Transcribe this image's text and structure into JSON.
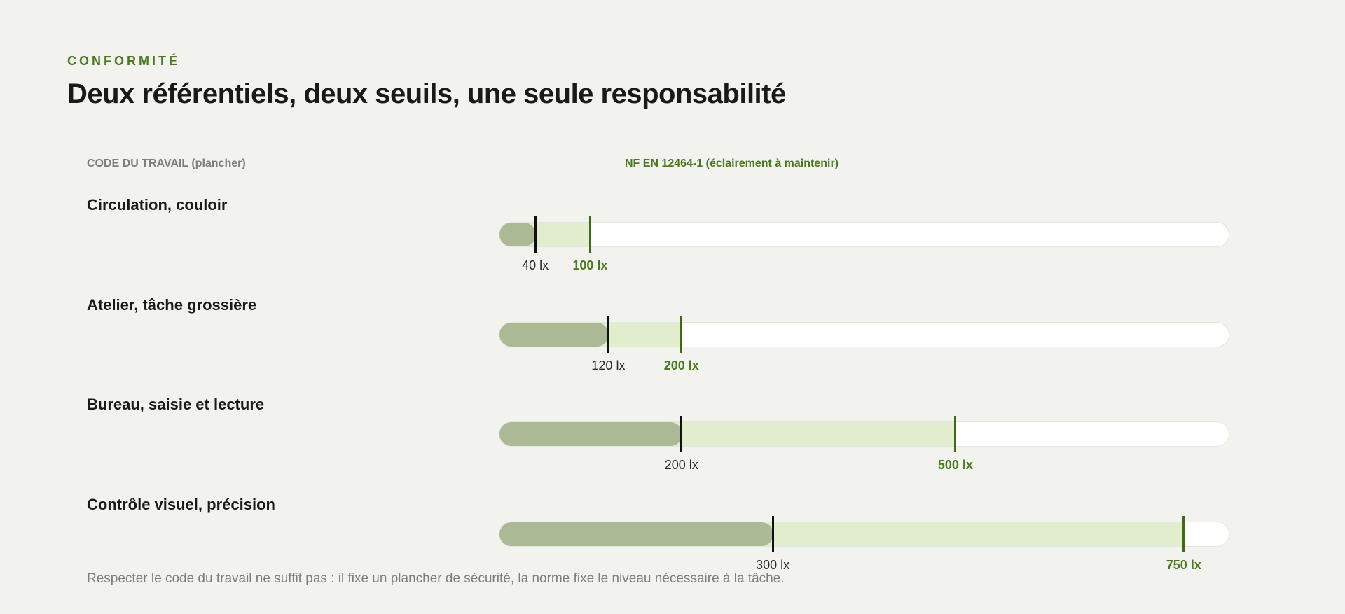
{
  "header": {
    "eyebrow": "CONFORMITÉ",
    "title": "Deux référentiels, deux seuils, une seule responsabilité"
  },
  "legend": {
    "code_label": "CODE DU TRAVAIL (plancher)",
    "norm_label": "NF EN 12464-1 (éclairement à maintenir)"
  },
  "colors": {
    "accent": "#4a7a1e",
    "code_fill": "#abb994",
    "norm_fill": "#e1edcc",
    "code_marker": "#111111",
    "norm_marker": "#3f6b17"
  },
  "chart_data": {
    "type": "bar",
    "unit": "lx",
    "xlim": [
      0,
      800
    ],
    "categories": [
      "Circulation, couloir",
      "Atelier, tâche grossière",
      "Bureau, saisie et lecture",
      "Contrôle visuel, précision"
    ],
    "series": [
      {
        "name": "CODE DU TRAVAIL (plancher)",
        "values": [
          40,
          120,
          200,
          300
        ],
        "labels": [
          "40 lx",
          "120 lx",
          "200 lx",
          "300 lx"
        ]
      },
      {
        "name": "NF EN 12464-1 (éclairement à maintenir)",
        "values": [
          100,
          200,
          500,
          750
        ],
        "labels": [
          "100 lx",
          "200 lx",
          "500 lx",
          "750 lx"
        ]
      }
    ]
  },
  "footnote": "Respecter le code du travail ne suffit pas : il fixe un plancher de sécurité, la norme fixe le niveau nécessaire à la tâche."
}
